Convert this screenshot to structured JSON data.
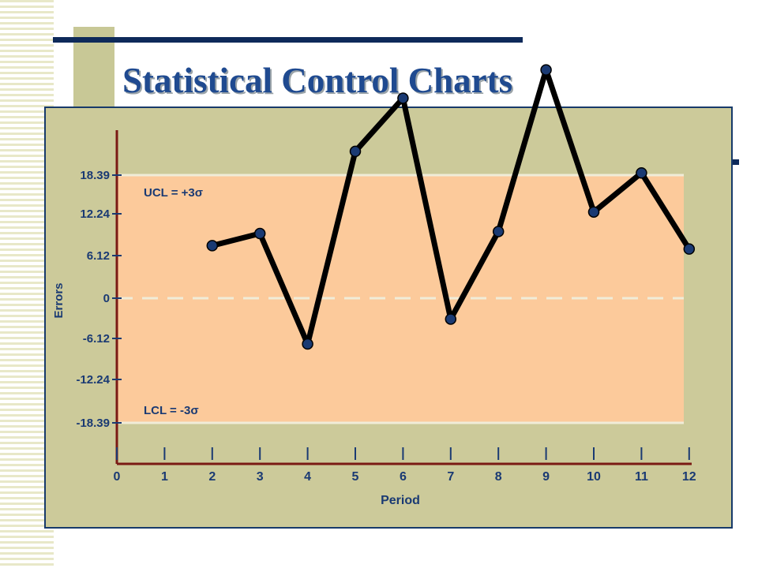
{
  "slide": {
    "title": "Statistical Control Charts"
  },
  "chart_data": {
    "type": "line",
    "title": "",
    "xlabel": "Period",
    "ylabel": "Errors",
    "x": [
      2,
      3,
      4,
      5,
      6,
      7,
      8,
      9,
      10,
      11,
      12
    ],
    "series": [
      {
        "values": [
          7.8,
          9.6,
          -6.8,
          21.8,
          29.7,
          -3.1,
          9.9,
          33.9,
          12.8,
          18.6,
          7.3
        ]
      }
    ],
    "x_ticks": [
      "0",
      "1",
      "2",
      "3",
      "4",
      "5",
      "6",
      "7",
      "8",
      "9",
      "10",
      "11",
      "12"
    ],
    "y_ticks": [
      "18.39",
      "12.24",
      "6.12",
      "0",
      "-6.12",
      "-12.24",
      "-18.39"
    ],
    "xlim": [
      0,
      12
    ],
    "control_limits": {
      "ucl_label": "UCL = +3σ",
      "center_label": "0",
      "lcl_label": "LCL = -3σ"
    },
    "colors": {
      "band": "#fcca9b",
      "line": "#000000",
      "marker": "#1a3a73",
      "axis": "#7a1a14",
      "panel": "#ccca9a"
    }
  }
}
